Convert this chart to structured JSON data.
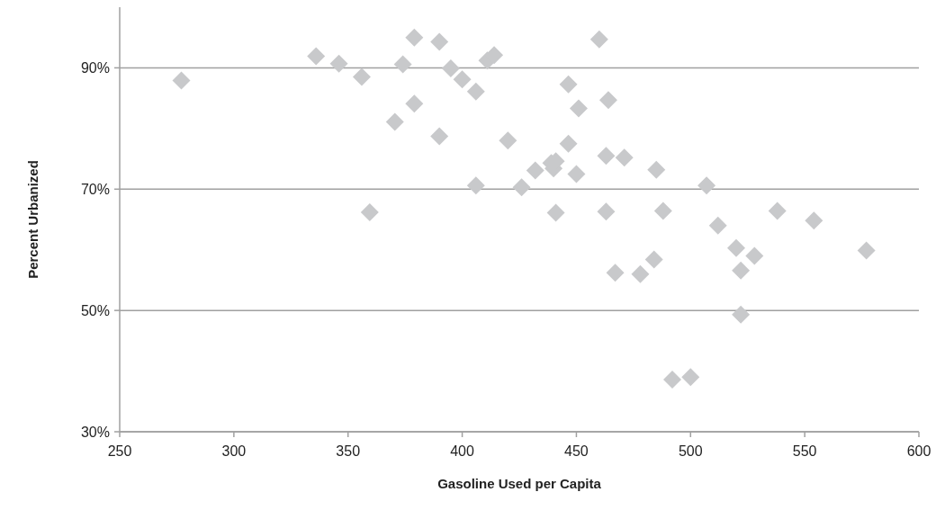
{
  "chart_data": {
    "type": "scatter",
    "xlabel": "Gasoline Used per Capita",
    "ylabel": "Percent Urbanized",
    "xlim": [
      250,
      600
    ],
    "xticks": [
      250,
      300,
      350,
      400,
      450,
      500,
      550,
      600
    ],
    "ylim": [
      30,
      100
    ],
    "yticks": [
      {
        "value": 30,
        "label": "30%"
      },
      {
        "value": 50,
        "label": "50%"
      },
      {
        "value": 70,
        "label": "70%"
      },
      {
        "value": 90,
        "label": "90%"
      }
    ],
    "grid": "y",
    "marker": "diamond",
    "series": [
      {
        "color": "#c8c9cb",
        "x": [
          277,
          336,
          346,
          356,
          359.5,
          370.5,
          374,
          379,
          379,
          390,
          390,
          395,
          400,
          406,
          406,
          411,
          414,
          420,
          426,
          432,
          439,
          440,
          441,
          441,
          446.5,
          446.5,
          450,
          451,
          460,
          463,
          463,
          464,
          467,
          471,
          478,
          484,
          485,
          488,
          492,
          500,
          507,
          512,
          520,
          522,
          522,
          528,
          538,
          554,
          577
        ],
        "values": [
          87.9,
          91.9,
          90.7,
          88.5,
          66.2,
          81.1,
          90.6,
          95.0,
          84.1,
          94.3,
          78.7,
          89.9,
          88.1,
          86.1,
          70.6,
          91.2,
          92.1,
          78.0,
          70.3,
          73.1,
          74.3,
          73.4,
          74.6,
          66.1,
          87.3,
          77.5,
          72.5,
          83.3,
          94.7,
          75.5,
          66.3,
          84.7,
          56.2,
          75.2,
          56.0,
          58.4,
          73.2,
          66.4,
          38.6,
          39.0,
          70.6,
          64.0,
          60.3,
          56.6,
          49.3,
          59.0,
          66.4,
          64.8,
          59.9
        ]
      }
    ]
  }
}
